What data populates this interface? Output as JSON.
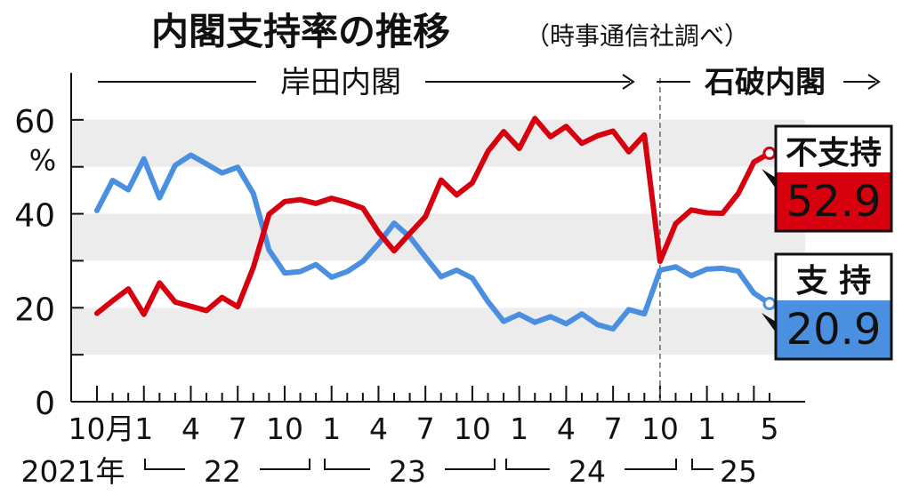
{
  "title": "内閣支持率の推移",
  "source_note": "（時事通信社調べ）",
  "eras": [
    {
      "label": "岸田内閣"
    },
    {
      "label": "石破内閣"
    }
  ],
  "colors": {
    "disapprove": "#d7000f",
    "approve": "#4a8fe0",
    "band": "#ececec"
  },
  "callouts": {
    "disapprove": {
      "label": "不支持",
      "value": "52.9"
    },
    "approve": {
      "label": "支 持",
      "value": "20.9"
    }
  },
  "chart_data": {
    "type": "line",
    "title": "内閣支持率の推移",
    "ylabel": "%",
    "ylim": [
      0,
      70
    ],
    "yticks": [
      0,
      20,
      40,
      60
    ],
    "grid": "alternating horizontal bands",
    "x": [
      "2021-10",
      "2021-11",
      "2021-12",
      "2022-01",
      "2022-02",
      "2022-03",
      "2022-04",
      "2022-05",
      "2022-06",
      "2022-07",
      "2022-08",
      "2022-09",
      "2022-10",
      "2022-11",
      "2022-12",
      "2023-01",
      "2023-02",
      "2023-03",
      "2023-04",
      "2023-05",
      "2023-06",
      "2023-07",
      "2023-08",
      "2023-09",
      "2023-10",
      "2023-11",
      "2023-12",
      "2024-01",
      "2024-02",
      "2024-03",
      "2024-04",
      "2024-05",
      "2024-06",
      "2024-07",
      "2024-08",
      "2024-09",
      "2024-10",
      "2024-11",
      "2024-12",
      "2025-01",
      "2025-02",
      "2025-03",
      "2025-04",
      "2025-05"
    ],
    "x_tick_labels": [
      "10月",
      "1",
      "4",
      "7",
      "10",
      "1",
      "4",
      "7",
      "10",
      "1",
      "4",
      "7",
      "10",
      "1",
      "5"
    ],
    "year_labels": [
      "2021年",
      "22",
      "23",
      "24",
      "25"
    ],
    "series": [
      {
        "name": "支持",
        "values": [
          40.7,
          47.1,
          45.1,
          51.7,
          43.4,
          50.3,
          52.5,
          50.6,
          48.7,
          49.9,
          44.3,
          32.3,
          27.4,
          27.7,
          29.2,
          26.5,
          27.7,
          29.9,
          33.6,
          38.0,
          35.1,
          30.8,
          26.6,
          28.0,
          26.3,
          21.3,
          17.1,
          18.6,
          16.9,
          18.1,
          16.6,
          18.7,
          16.4,
          15.5,
          19.6,
          18.7,
          28.0,
          28.7,
          26.8,
          28.2,
          28.4,
          27.8,
          23.1,
          20.9
        ]
      },
      {
        "name": "不支持",
        "values": [
          18.8,
          21.5,
          24.0,
          18.6,
          25.3,
          21.2,
          20.3,
          19.4,
          22.2,
          20.2,
          28.6,
          39.9,
          42.6,
          43.0,
          42.2,
          43.3,
          42.4,
          41.2,
          36.1,
          32.1,
          35.8,
          39.4,
          47.2,
          44.0,
          46.6,
          53.3,
          57.5,
          53.9,
          60.3,
          56.4,
          58.6,
          55.0,
          56.6,
          57.6,
          53.2,
          56.8,
          29.9,
          37.9,
          40.8,
          40.2,
          40.1,
          44.3,
          51.0,
          52.9
        ]
      }
    ]
  }
}
